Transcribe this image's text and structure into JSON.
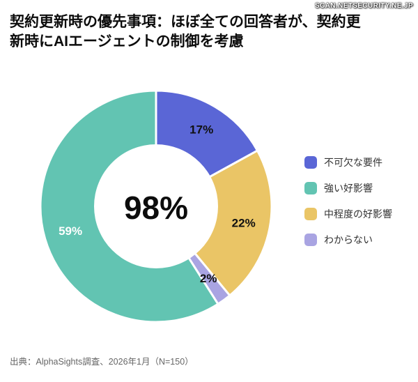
{
  "watermark": "SCAN.NETSECURITY.NE.JP",
  "title": {
    "label": "契約更新時の優先事項：",
    "rest": "ほぼ全ての回答者が、契約更新時にAIエージェントの制御を考慮"
  },
  "source": "出典：AlphaSights調査、2026年1月（N=150）",
  "chart_data": {
    "type": "pie",
    "variant": "donut",
    "title": "契約更新時の優先事項：ほぼ全ての回答者が、契約更新時にAIエージェントの制御を考慮",
    "center_label": "98%",
    "unit": "%",
    "direction": "clockwise",
    "start_angle_deg": 0,
    "legend_position": "right",
    "segments": [
      {
        "label": "不可欠な要件",
        "value": 17,
        "display": "17%",
        "color": "#5a66d6",
        "label_color": "#101010"
      },
      {
        "label": "中程度の好影響",
        "value": 22,
        "display": "22%",
        "color": "#eac566",
        "label_color": "#101010"
      },
      {
        "label": "わからない",
        "value": 2,
        "display": "2%",
        "color": "#a9a4e2",
        "label_color": "#101010"
      },
      {
        "label": "強い好影響",
        "value": 59,
        "display": "59%",
        "color": "#62c4b2",
        "label_color": "#ffffff"
      }
    ],
    "legend": [
      {
        "label": "不可欠な要件",
        "color": "#5a66d6"
      },
      {
        "label": "強い好影響",
        "color": "#62c4b2"
      },
      {
        "label": "中程度の好影響",
        "color": "#eac566"
      },
      {
        "label": "わからない",
        "color": "#a9a4e2"
      }
    ]
  }
}
